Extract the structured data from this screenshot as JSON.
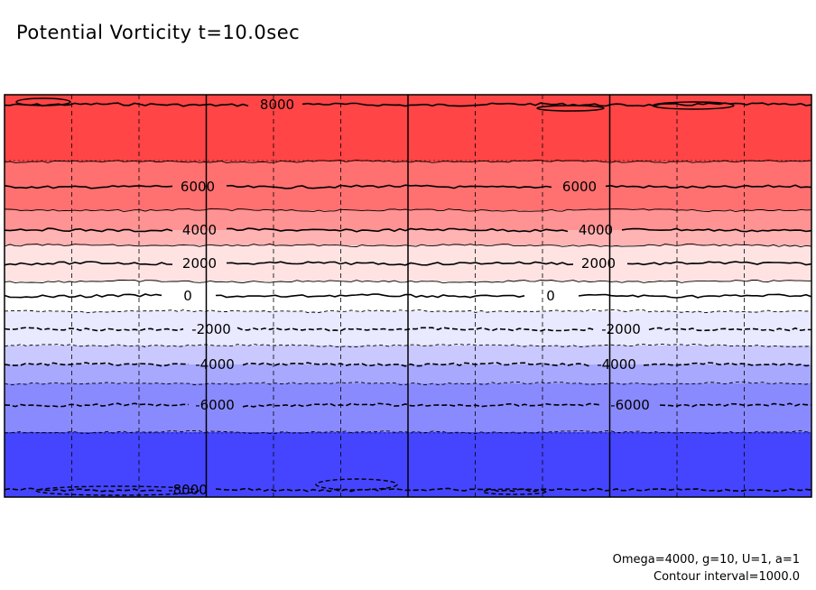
{
  "title": "Potential Vorticity t=10.0sec",
  "footnotes": {
    "params": "Omega=4000, g=10, U=1, a=1",
    "interval": "Contour interval=1000.0"
  },
  "chart_data": {
    "type": "heatmap",
    "title": "Potential Vorticity t=10.0sec",
    "variable": "Potential Vorticity",
    "time_sec": 10.0,
    "value_range": [
      -9000,
      9000
    ],
    "contour_interval": 1000.0,
    "colormap": "blue-white-red",
    "bands": [
      {
        "from": 7000,
        "to": 9000,
        "color": "#ff4545"
      },
      {
        "from": 5000,
        "to": 7000,
        "color": "#ff7070"
      },
      {
        "from": 4000,
        "to": 5000,
        "color": "#ff9292"
      },
      {
        "from": 3000,
        "to": 4000,
        "color": "#ffb3b3"
      },
      {
        "from": 1000,
        "to": 3000,
        "color": "#ffe3e3"
      },
      {
        "from": 0,
        "to": 1000,
        "color": "#ffffff"
      },
      {
        "from": -1000,
        "to": 0,
        "color": "#ffffff"
      },
      {
        "from": -3000,
        "to": -1000,
        "color": "#e9e9ff"
      },
      {
        "from": -4000,
        "to": -3000,
        "color": "#c9c9ff"
      },
      {
        "from": -5000,
        "to": -4000,
        "color": "#a8a8ff"
      },
      {
        "from": -7000,
        "to": -5000,
        "color": "#8a8aff"
      },
      {
        "from": -9000,
        "to": -7000,
        "color": "#4545ff"
      }
    ],
    "contours": [
      {
        "level": 8000,
        "style": "solid",
        "label": "8000"
      },
      {
        "level": 7000,
        "style": "solid",
        "label": ""
      },
      {
        "level": 6000,
        "style": "solid",
        "label": "6000"
      },
      {
        "level": 5000,
        "style": "solid",
        "label": ""
      },
      {
        "level": 4000,
        "style": "solid",
        "label": "4000"
      },
      {
        "level": 3000,
        "style": "solid",
        "label": ""
      },
      {
        "level": 2000,
        "style": "solid",
        "label": "2000"
      },
      {
        "level": 1000,
        "style": "solid",
        "label": ""
      },
      {
        "level": 0,
        "style": "solid",
        "label": "0"
      },
      {
        "level": -1000,
        "style": "dashed",
        "label": ""
      },
      {
        "level": -2000,
        "style": "dashed",
        "label": "-2000"
      },
      {
        "level": -3000,
        "style": "dashed",
        "label": ""
      },
      {
        "level": -4000,
        "style": "dashed",
        "label": "-4000"
      },
      {
        "level": -5000,
        "style": "dashed",
        "label": ""
      },
      {
        "level": -6000,
        "style": "dashed",
        "label": "-6000"
      },
      {
        "level": -7000,
        "style": "dashed",
        "label": ""
      },
      {
        "level": -8000,
        "style": "dashed",
        "label": "-8000"
      }
    ],
    "grid": {
      "dashed_verticals": 8,
      "solid_verticals": 3
    },
    "legend": "none"
  }
}
